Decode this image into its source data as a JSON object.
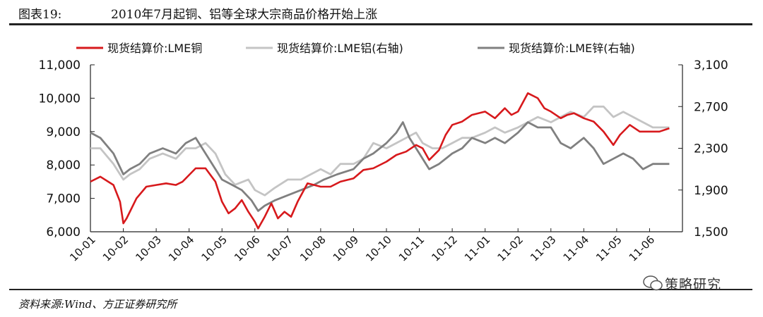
{
  "header": {
    "figure_label": "图表19:",
    "title": "2010年7月起铜、铝等全球大宗商品价格开始上涨"
  },
  "footer": {
    "source": "资料来源:Wind、方正证券研究所",
    "watermark": "策略研究"
  },
  "colors": {
    "copper": "#d7191c",
    "aluminum": "#c4c4c4",
    "zinc": "#808080"
  },
  "chart_data": {
    "type": "line",
    "title": "2010年7月起铜、铝等全球大宗商品价格开始上涨",
    "legend": [
      "现货结算价:LME铜",
      "现货结算价:LME铝(右轴)",
      "现货结算价:LME锌(右轴)"
    ],
    "legend_position": "top",
    "x_ticks": [
      "10-01",
      "10-02",
      "10-03",
      "10-04",
      "10-05",
      "10-06",
      "10-07",
      "10-08",
      "10-09",
      "10-10",
      "10-11",
      "10-12",
      "11-01",
      "11-02",
      "11-03",
      "11-04",
      "11-05",
      "11-06"
    ],
    "y_left": {
      "min": 6000,
      "max": 11000,
      "ticks": [
        "6,000",
        "7,000",
        "8,000",
        "9,000",
        "10,000",
        "11,000"
      ]
    },
    "y_right": {
      "min": 1500,
      "max": 3100,
      "ticks": [
        "1,500",
        "1,900",
        "2,300",
        "2,700",
        "3,100"
      ]
    },
    "grid": false,
    "series": [
      {
        "name": "现货结算价:LME铜",
        "axis": "left",
        "color": "#d7191c",
        "values": [
          [
            1,
            7500
          ],
          [
            1.3,
            7650
          ],
          [
            1.7,
            7400
          ],
          [
            1.9,
            6900
          ],
          [
            2.0,
            6250
          ],
          [
            2.1,
            6400
          ],
          [
            2.4,
            7000
          ],
          [
            2.7,
            7350
          ],
          [
            3,
            7400
          ],
          [
            3.3,
            7450
          ],
          [
            3.6,
            7400
          ],
          [
            3.8,
            7500
          ],
          [
            4,
            7700
          ],
          [
            4.2,
            7900
          ],
          [
            4.5,
            7900
          ],
          [
            4.8,
            7500
          ],
          [
            5.0,
            6900
          ],
          [
            5.2,
            6550
          ],
          [
            5.4,
            6700
          ],
          [
            5.6,
            6950
          ],
          [
            5.8,
            6600
          ],
          [
            6.0,
            6300
          ],
          [
            6.1,
            6100
          ],
          [
            6.3,
            6450
          ],
          [
            6.5,
            6850
          ],
          [
            6.7,
            6400
          ],
          [
            6.9,
            6600
          ],
          [
            7.1,
            6450
          ],
          [
            7.3,
            6900
          ],
          [
            7.6,
            7450
          ],
          [
            8,
            7350
          ],
          [
            8.3,
            7350
          ],
          [
            8.6,
            7500
          ],
          [
            9,
            7600
          ],
          [
            9.3,
            7850
          ],
          [
            9.6,
            7900
          ],
          [
            10,
            8100
          ],
          [
            10.3,
            8300
          ],
          [
            10.6,
            8400
          ],
          [
            10.9,
            8600
          ],
          [
            11.1,
            8500
          ],
          [
            11.3,
            8150
          ],
          [
            11.6,
            8450
          ],
          [
            11.8,
            8900
          ],
          [
            12,
            9200
          ],
          [
            12.3,
            9300
          ],
          [
            12.6,
            9500
          ],
          [
            13,
            9600
          ],
          [
            13.3,
            9400
          ],
          [
            13.6,
            9700
          ],
          [
            13.8,
            9500
          ],
          [
            14,
            9600
          ],
          [
            14.3,
            10150
          ],
          [
            14.6,
            10000
          ],
          [
            14.8,
            9700
          ],
          [
            15,
            9600
          ],
          [
            15.3,
            9400
          ],
          [
            15.5,
            9500
          ],
          [
            15.7,
            9550
          ],
          [
            16,
            9400
          ],
          [
            16.3,
            9300
          ],
          [
            16.6,
            9000
          ],
          [
            16.9,
            8600
          ],
          [
            17.1,
            8900
          ],
          [
            17.4,
            9200
          ],
          [
            17.7,
            9000
          ],
          [
            18,
            9000
          ],
          [
            18.3,
            9000
          ],
          [
            18.6,
            9100
          ]
        ]
      },
      {
        "name": "现货结算价:LME铝(右轴)",
        "axis": "right",
        "color": "#c4c4c4",
        "values": [
          [
            1,
            2300
          ],
          [
            1.3,
            2300
          ],
          [
            1.7,
            2150
          ],
          [
            2.0,
            2000
          ],
          [
            2.2,
            2050
          ],
          [
            2.5,
            2100
          ],
          [
            2.8,
            2200
          ],
          [
            3.2,
            2250
          ],
          [
            3.6,
            2200
          ],
          [
            3.9,
            2300
          ],
          [
            4.2,
            2300
          ],
          [
            4.5,
            2350
          ],
          [
            4.8,
            2250
          ],
          [
            5.1,
            2050
          ],
          [
            5.4,
            1950
          ],
          [
            5.8,
            2000
          ],
          [
            6.0,
            1900
          ],
          [
            6.3,
            1850
          ],
          [
            6.6,
            1920
          ],
          [
            7,
            2000
          ],
          [
            7.4,
            2000
          ],
          [
            7.7,
            2050
          ],
          [
            8,
            2100
          ],
          [
            8.3,
            2050
          ],
          [
            8.6,
            2150
          ],
          [
            9,
            2150
          ],
          [
            9.3,
            2200
          ],
          [
            9.6,
            2350
          ],
          [
            10,
            2300
          ],
          [
            10.3,
            2350
          ],
          [
            10.6,
            2400
          ],
          [
            10.9,
            2450
          ],
          [
            11.1,
            2350
          ],
          [
            11.4,
            2300
          ],
          [
            11.7,
            2300
          ],
          [
            12,
            2350
          ],
          [
            12.3,
            2400
          ],
          [
            12.6,
            2400
          ],
          [
            13,
            2450
          ],
          [
            13.3,
            2500
          ],
          [
            13.6,
            2450
          ],
          [
            14,
            2500
          ],
          [
            14.3,
            2550
          ],
          [
            14.6,
            2600
          ],
          [
            15,
            2550
          ],
          [
            15.3,
            2600
          ],
          [
            15.6,
            2650
          ],
          [
            16,
            2600
          ],
          [
            16.3,
            2700
          ],
          [
            16.6,
            2700
          ],
          [
            16.9,
            2600
          ],
          [
            17.2,
            2650
          ],
          [
            17.5,
            2600
          ],
          [
            17.8,
            2550
          ],
          [
            18.1,
            2500
          ],
          [
            18.6,
            2500
          ]
        ]
      },
      {
        "name": "现货结算价:LME锌(右轴)",
        "axis": "right",
        "color": "#808080",
        "values": [
          [
            1,
            2450
          ],
          [
            1.3,
            2400
          ],
          [
            1.7,
            2250
          ],
          [
            2.0,
            2050
          ],
          [
            2.2,
            2100
          ],
          [
            2.5,
            2150
          ],
          [
            2.8,
            2250
          ],
          [
            3.2,
            2300
          ],
          [
            3.6,
            2250
          ],
          [
            3.9,
            2350
          ],
          [
            4.2,
            2400
          ],
          [
            4.4,
            2300
          ],
          [
            4.7,
            2150
          ],
          [
            5.0,
            2000
          ],
          [
            5.3,
            1950
          ],
          [
            5.6,
            1900
          ],
          [
            5.9,
            1800
          ],
          [
            6.1,
            1700
          ],
          [
            6.3,
            1750
          ],
          [
            6.6,
            1800
          ],
          [
            7,
            1850
          ],
          [
            7.4,
            1900
          ],
          [
            7.8,
            1950
          ],
          [
            8.1,
            2000
          ],
          [
            8.5,
            2050
          ],
          [
            9,
            2100
          ],
          [
            9.3,
            2200
          ],
          [
            9.6,
            2250
          ],
          [
            10,
            2350
          ],
          [
            10.3,
            2450
          ],
          [
            10.5,
            2550
          ],
          [
            10.7,
            2400
          ],
          [
            11,
            2250
          ],
          [
            11.3,
            2100
          ],
          [
            11.6,
            2150
          ],
          [
            12,
            2250
          ],
          [
            12.3,
            2300
          ],
          [
            12.6,
            2400
          ],
          [
            13,
            2350
          ],
          [
            13.3,
            2400
          ],
          [
            13.6,
            2350
          ],
          [
            14,
            2450
          ],
          [
            14.3,
            2550
          ],
          [
            14.6,
            2500
          ],
          [
            15,
            2500
          ],
          [
            15.3,
            2350
          ],
          [
            15.6,
            2300
          ],
          [
            16,
            2400
          ],
          [
            16.3,
            2300
          ],
          [
            16.6,
            2150
          ],
          [
            16.9,
            2200
          ],
          [
            17.2,
            2250
          ],
          [
            17.5,
            2200
          ],
          [
            17.8,
            2100
          ],
          [
            18.1,
            2150
          ],
          [
            18.6,
            2150
          ]
        ]
      }
    ]
  }
}
